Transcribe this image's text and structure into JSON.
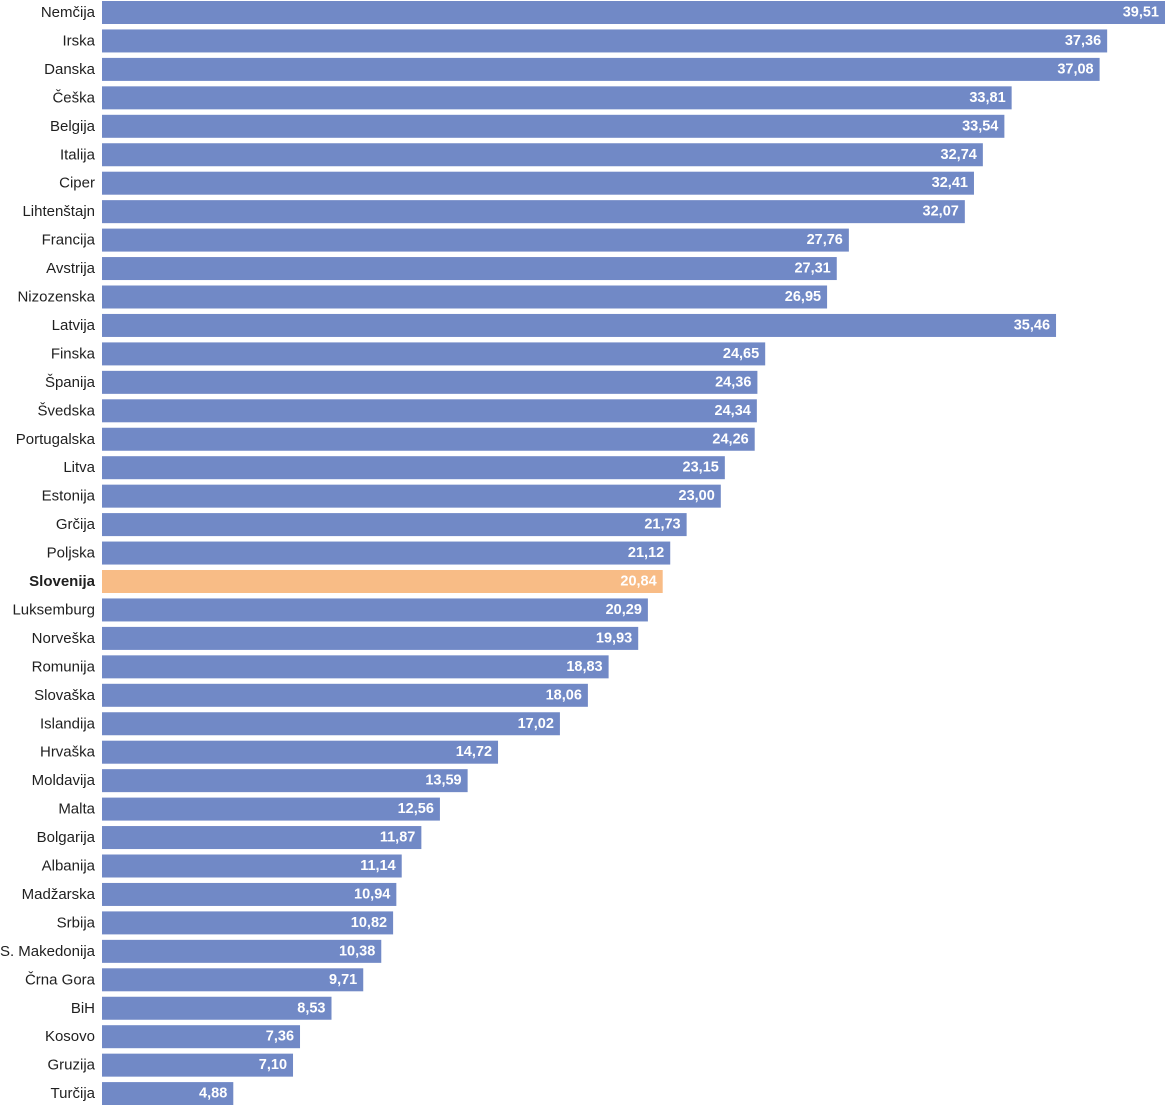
{
  "chart_data": {
    "type": "bar",
    "orientation": "horizontal",
    "title": "",
    "xlabel": "",
    "ylabel": "",
    "xlim": [
      0,
      39.51
    ],
    "grid": false,
    "legend": "none",
    "categories": [
      "Nemčija",
      "Irska",
      "Danska",
      "Češka",
      "Belgija",
      "Italija",
      "Ciper",
      "Lihtenštajn",
      "Francija",
      "Avstrija",
      "Nizozenska",
      "Latvija",
      "Finska",
      "Španija",
      "Švedska",
      "Portugalska",
      "Litva",
      "Estonija",
      "Grčija",
      "Poljska",
      "Slovenija",
      "Luksemburg",
      "Norveška",
      "Romunija",
      "Slovaška",
      "Islandija",
      "Hrvaška",
      "Moldavija",
      "Malta",
      "Bolgarija",
      "Albanija",
      "Madžarska",
      "Srbija",
      "S. Makedonija",
      "Črna Gora",
      "BiH",
      "Kosovo",
      "Gruzija",
      "Turčija"
    ],
    "values": [
      39.51,
      37.36,
      37.08,
      33.81,
      33.54,
      32.74,
      32.41,
      32.07,
      27.76,
      27.31,
      26.95,
      35.46,
      24.65,
      24.36,
      24.34,
      24.26,
      23.15,
      23.0,
      21.73,
      21.12,
      20.84,
      20.29,
      19.93,
      18.83,
      18.06,
      17.02,
      14.72,
      13.59,
      12.56,
      11.87,
      11.14,
      10.94,
      10.82,
      10.38,
      9.71,
      8.53,
      7.36,
      7.1,
      4.88
    ],
    "value_labels": [
      "39,51",
      "37,36",
      "37,08",
      "33,81",
      "33,54",
      "32,74",
      "32,41",
      "32,07",
      "27,76",
      "27,31",
      "26,95",
      "35,46",
      "24,65",
      "24,36",
      "24,34",
      "24,26",
      "23,15",
      "23,00",
      "21,73",
      "21,12",
      "20,84",
      "20,29",
      "19,93",
      "18,83",
      "18,06",
      "17,02",
      "14,72",
      "13,59",
      "12,56",
      "11,87",
      "11,14",
      "10,94",
      "10,82",
      "10,38",
      "9,71",
      "8,53",
      "7,36",
      "7,10",
      "4,88"
    ],
    "bar_color": "#7189c6",
    "highlight_category": "Slovenija",
    "highlight_color": "#f8bc86"
  }
}
